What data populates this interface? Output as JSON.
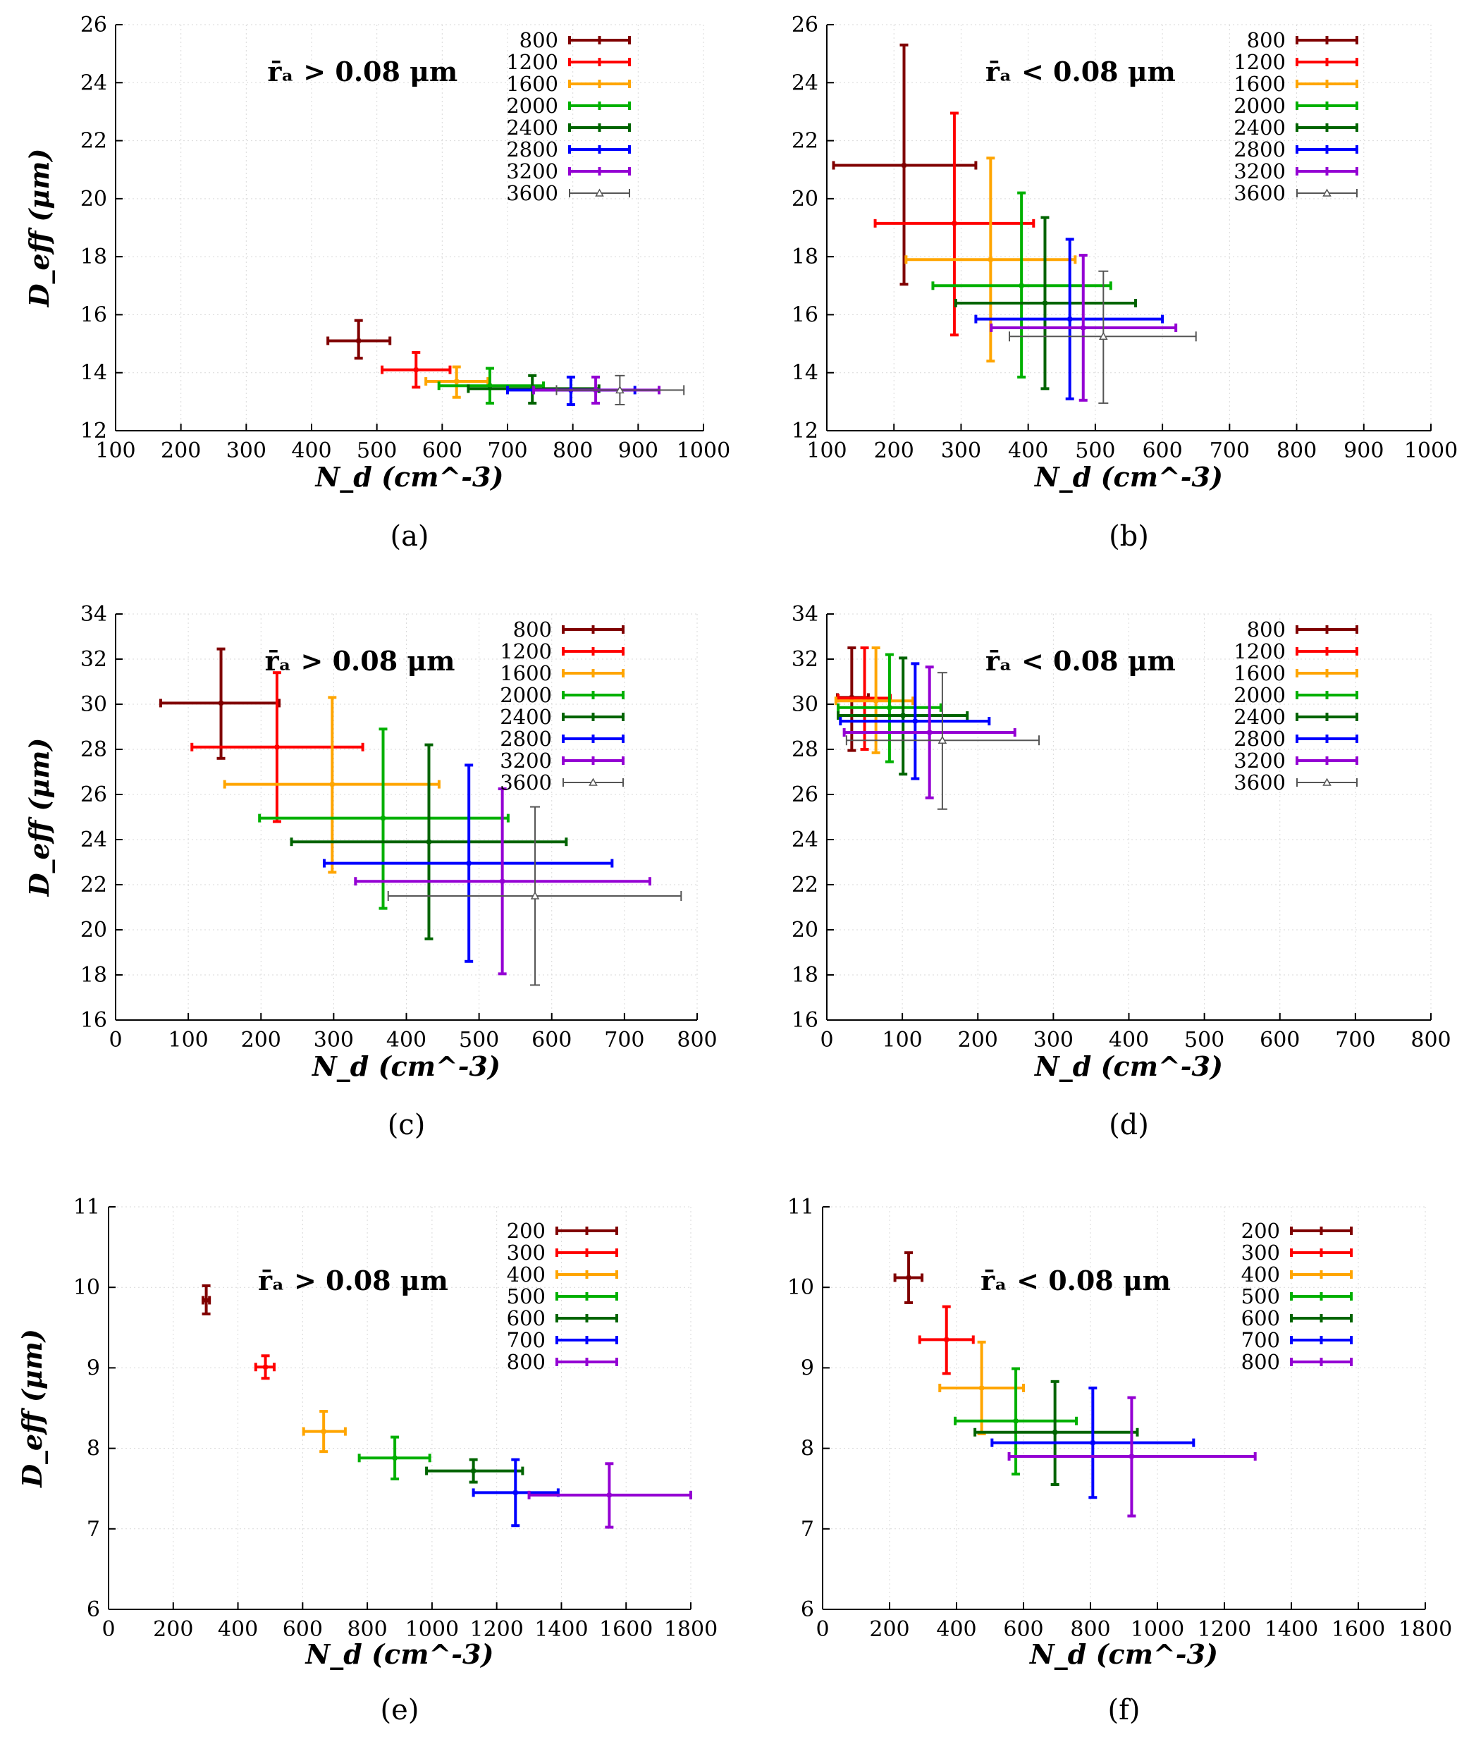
{
  "figure": {
    "captions": [
      "(a)",
      "(b)",
      "(c)",
      "(d)",
      "(e)",
      "(f)"
    ]
  },
  "colors": {
    "s1": "#800000",
    "s2": "#ff0000",
    "s3": "#ffa500",
    "s4": "#00b000",
    "s5": "#006400",
    "s6": "#0000ff",
    "s7": "#9400d3",
    "s8": "#555555"
  },
  "chart_data": [
    {
      "panel": "a",
      "type": "scatter",
      "title": "",
      "annotation": "r̄ₐ > 0.08  μm",
      "xlabel": "N_d (cm^-3)",
      "ylabel": "D_eff (μm)",
      "xlim": [
        100,
        1000
      ],
      "ylim": [
        12,
        26
      ],
      "xticks": [
        100,
        200,
        300,
        400,
        500,
        600,
        700,
        800,
        900,
        1000
      ],
      "yticks": [
        12,
        14,
        16,
        18,
        20,
        22,
        24,
        26
      ],
      "grid": true,
      "legend_position": "top-right",
      "series": [
        {
          "name": "800",
          "x": 472,
          "xerr": [
            425,
            520
          ],
          "y": 15.1,
          "yerr": [
            14.5,
            15.8
          ]
        },
        {
          "name": "1200",
          "x": 560,
          "xerr": [
            508,
            612
          ],
          "y": 14.1,
          "yerr": [
            13.5,
            14.7
          ]
        },
        {
          "name": "1600",
          "x": 622,
          "xerr": [
            575,
            670
          ],
          "y": 13.7,
          "yerr": [
            13.15,
            14.2
          ]
        },
        {
          "name": "2000",
          "x": 673,
          "xerr": [
            595,
            755
          ],
          "y": 13.55,
          "yerr": [
            12.95,
            14.15
          ]
        },
        {
          "name": "2400",
          "x": 738,
          "xerr": [
            640,
            840
          ],
          "y": 13.45,
          "yerr": [
            12.95,
            13.9
          ]
        },
        {
          "name": "2800",
          "x": 797,
          "xerr": [
            700,
            895
          ],
          "y": 13.4,
          "yerr": [
            12.9,
            13.85
          ]
        },
        {
          "name": "3200",
          "x": 835,
          "xerr": [
            740,
            932
          ],
          "y": 13.4,
          "yerr": [
            12.95,
            13.85
          ]
        },
        {
          "name": "3600",
          "x": 872,
          "xerr": [
            775,
            970
          ],
          "y": 13.4,
          "yerr": [
            12.9,
            13.9
          ]
        }
      ]
    },
    {
      "panel": "b",
      "type": "scatter",
      "title": "",
      "annotation": "r̄ₐ < 0.08  μm",
      "xlabel": "N_d (cm^-3)",
      "ylabel": "",
      "xlim": [
        100,
        1000
      ],
      "ylim": [
        12,
        26
      ],
      "xticks": [
        100,
        200,
        300,
        400,
        500,
        600,
        700,
        800,
        900,
        1000
      ],
      "yticks": [
        12,
        14,
        16,
        18,
        20,
        22,
        24,
        26
      ],
      "grid": true,
      "legend_position": "top-right",
      "series": [
        {
          "name": "800",
          "x": 215,
          "xerr": [
            110,
            322
          ],
          "y": 21.15,
          "yerr": [
            17.05,
            25.3
          ]
        },
        {
          "name": "1200",
          "x": 290,
          "xerr": [
            172,
            408
          ],
          "y": 19.15,
          "yerr": [
            15.3,
            22.95
          ]
        },
        {
          "name": "1600",
          "x": 344,
          "xerr": [
            218,
            470
          ],
          "y": 17.9,
          "yerr": [
            14.4,
            21.4
          ]
        },
        {
          "name": "2000",
          "x": 390,
          "xerr": [
            258,
            523
          ],
          "y": 17.0,
          "yerr": [
            13.85,
            20.2
          ]
        },
        {
          "name": "2400",
          "x": 425,
          "xerr": [
            292,
            560
          ],
          "y": 16.4,
          "yerr": [
            13.45,
            19.35
          ]
        },
        {
          "name": "2800",
          "x": 462,
          "xerr": [
            322,
            600
          ],
          "y": 15.85,
          "yerr": [
            13.1,
            18.6
          ]
        },
        {
          "name": "3200",
          "x": 482,
          "xerr": [
            345,
            620
          ],
          "y": 15.55,
          "yerr": [
            13.05,
            18.05
          ]
        },
        {
          "name": "3600",
          "x": 512,
          "xerr": [
            372,
            650
          ],
          "y": 15.25,
          "yerr": [
            12.95,
            17.5
          ]
        }
      ]
    },
    {
      "panel": "c",
      "type": "scatter",
      "title": "",
      "annotation": "r̄ₐ > 0.08  μm",
      "xlabel": "N_d (cm^-3)",
      "ylabel": "D_eff (μm)",
      "xlim": [
        0,
        800
      ],
      "ylim": [
        16,
        34
      ],
      "xticks": [
        0,
        100,
        200,
        300,
        400,
        500,
        600,
        700,
        800
      ],
      "yticks": [
        16,
        18,
        20,
        22,
        24,
        26,
        28,
        30,
        32,
        34
      ],
      "grid": true,
      "legend_position": "top-right",
      "series": [
        {
          "name": "800",
          "x": 145,
          "xerr": [
            62,
            225
          ],
          "y": 30.05,
          "yerr": [
            27.6,
            32.45
          ]
        },
        {
          "name": "1200",
          "x": 222,
          "xerr": [
            105,
            340
          ],
          "y": 28.1,
          "yerr": [
            24.8,
            31.4
          ]
        },
        {
          "name": "1600",
          "x": 298,
          "xerr": [
            150,
            445
          ],
          "y": 26.45,
          "yerr": [
            22.55,
            30.3
          ]
        },
        {
          "name": "2000",
          "x": 368,
          "xerr": [
            198,
            540
          ],
          "y": 24.95,
          "yerr": [
            20.95,
            28.9
          ]
        },
        {
          "name": "2400",
          "x": 431,
          "xerr": [
            242,
            620
          ],
          "y": 23.9,
          "yerr": [
            19.6,
            28.2
          ]
        },
        {
          "name": "2800",
          "x": 486,
          "xerr": [
            287,
            683
          ],
          "y": 22.95,
          "yerr": [
            18.6,
            27.3
          ]
        },
        {
          "name": "3200",
          "x": 532,
          "xerr": [
            330,
            735
          ],
          "y": 22.15,
          "yerr": [
            18.05,
            26.25
          ]
        },
        {
          "name": "3600",
          "x": 577,
          "xerr": [
            375,
            778
          ],
          "y": 21.5,
          "yerr": [
            17.55,
            25.45
          ]
        }
      ]
    },
    {
      "panel": "d",
      "type": "scatter",
      "title": "",
      "annotation": "r̄ₐ < 0.08  μm",
      "xlabel": "N_d (cm^-3)",
      "ylabel": "",
      "xlim": [
        0,
        800
      ],
      "ylim": [
        16,
        34
      ],
      "xticks": [
        0,
        100,
        200,
        300,
        400,
        500,
        600,
        700,
        800
      ],
      "yticks": [
        16,
        18,
        20,
        22,
        24,
        26,
        28,
        30,
        32,
        34
      ],
      "grid": true,
      "legend_position": "top-right",
      "series": [
        {
          "name": "800",
          "x": 33,
          "xerr": [
            14,
            55
          ],
          "y": 30.3,
          "yerr": [
            27.95,
            32.5
          ]
        },
        {
          "name": "1200",
          "x": 50,
          "xerr": [
            15,
            84
          ],
          "y": 30.27,
          "yerr": [
            28.0,
            32.5
          ]
        },
        {
          "name": "1600",
          "x": 65,
          "xerr": [
            12,
            114
          ],
          "y": 30.15,
          "yerr": [
            27.85,
            32.5
          ]
        },
        {
          "name": "2000",
          "x": 83,
          "xerr": [
            15,
            151
          ],
          "y": 29.85,
          "yerr": [
            27.45,
            32.2
          ]
        },
        {
          "name": "2400",
          "x": 101,
          "xerr": [
            15,
            186
          ],
          "y": 29.5,
          "yerr": [
            26.9,
            32.05
          ]
        },
        {
          "name": "2800",
          "x": 117,
          "xerr": [
            18,
            215
          ],
          "y": 29.25,
          "yerr": [
            26.7,
            31.8
          ]
        },
        {
          "name": "3200",
          "x": 136,
          "xerr": [
            23,
            249
          ],
          "y": 28.75,
          "yerr": [
            25.85,
            31.65
          ]
        },
        {
          "name": "3600",
          "x": 153,
          "xerr": [
            26,
            281
          ],
          "y": 28.4,
          "yerr": [
            25.35,
            31.4
          ]
        }
      ]
    },
    {
      "panel": "e",
      "type": "scatter",
      "title": "",
      "annotation": "r̄ₐ > 0.08  μm",
      "xlabel": "N_d (cm^-3)",
      "ylabel": "D_eff (μm)",
      "xlim": [
        0,
        1800
      ],
      "ylim": [
        6,
        11
      ],
      "xticks": [
        0,
        200,
        400,
        600,
        800,
        1000,
        1200,
        1400,
        1600,
        1800
      ],
      "yticks": [
        6,
        7,
        8,
        9,
        10,
        11
      ],
      "grid": true,
      "legend_position": "top-right",
      "series": [
        {
          "name": "200",
          "x": 302,
          "xerr": [
            292,
            312
          ],
          "y": 9.84,
          "yerr": [
            9.67,
            10.02
          ]
        },
        {
          "name": "300",
          "x": 485,
          "xerr": [
            455,
            512
          ],
          "y": 9.01,
          "yerr": [
            8.87,
            9.15
          ]
        },
        {
          "name": "400",
          "x": 665,
          "xerr": [
            603,
            732
          ],
          "y": 8.21,
          "yerr": [
            7.96,
            8.46
          ]
        },
        {
          "name": "500",
          "x": 885,
          "xerr": [
            775,
            993
          ],
          "y": 7.88,
          "yerr": [
            7.62,
            8.14
          ]
        },
        {
          "name": "600",
          "x": 1128,
          "xerr": [
            983,
            1280
          ],
          "y": 7.72,
          "yerr": [
            7.58,
            7.86
          ]
        },
        {
          "name": "700",
          "x": 1258,
          "xerr": [
            1128,
            1390
          ],
          "y": 7.45,
          "yerr": [
            7.04,
            7.86
          ]
        },
        {
          "name": "800",
          "x": 1548,
          "xerr": [
            1300,
            1800
          ],
          "y": 7.42,
          "yerr": [
            7.02,
            7.81
          ]
        }
      ]
    },
    {
      "panel": "f",
      "type": "scatter",
      "title": "",
      "annotation": "r̄ₐ < 0.08  μm",
      "xlabel": "N_d (cm^-3)",
      "ylabel": "",
      "xlim": [
        0,
        1800
      ],
      "ylim": [
        6,
        11
      ],
      "xticks": [
        0,
        200,
        400,
        600,
        800,
        1000,
        1200,
        1400,
        1600,
        1800
      ],
      "yticks": [
        6,
        7,
        8,
        9,
        10,
        11
      ],
      "grid": true,
      "legend_position": "top-right",
      "series": [
        {
          "name": "200",
          "x": 257,
          "xerr": [
            216,
            297
          ],
          "y": 10.12,
          "yerr": [
            9.81,
            10.43
          ]
        },
        {
          "name": "300",
          "x": 370,
          "xerr": [
            290,
            450
          ],
          "y": 9.35,
          "yerr": [
            8.93,
            9.76
          ]
        },
        {
          "name": "400",
          "x": 475,
          "xerr": [
            350,
            600
          ],
          "y": 8.75,
          "yerr": [
            8.18,
            9.32
          ]
        },
        {
          "name": "500",
          "x": 577,
          "xerr": [
            396,
            758
          ],
          "y": 8.34,
          "yerr": [
            7.68,
            8.99
          ]
        },
        {
          "name": "600",
          "x": 694,
          "xerr": [
            455,
            940
          ],
          "y": 8.2,
          "yerr": [
            7.55,
            8.83
          ]
        },
        {
          "name": "700",
          "x": 807,
          "xerr": [
            506,
            1108
          ],
          "y": 8.07,
          "yerr": [
            7.39,
            8.75
          ]
        },
        {
          "name": "800",
          "x": 923,
          "xerr": [
            557,
            1292
          ],
          "y": 7.9,
          "yerr": [
            7.16,
            8.63
          ]
        }
      ]
    }
  ]
}
